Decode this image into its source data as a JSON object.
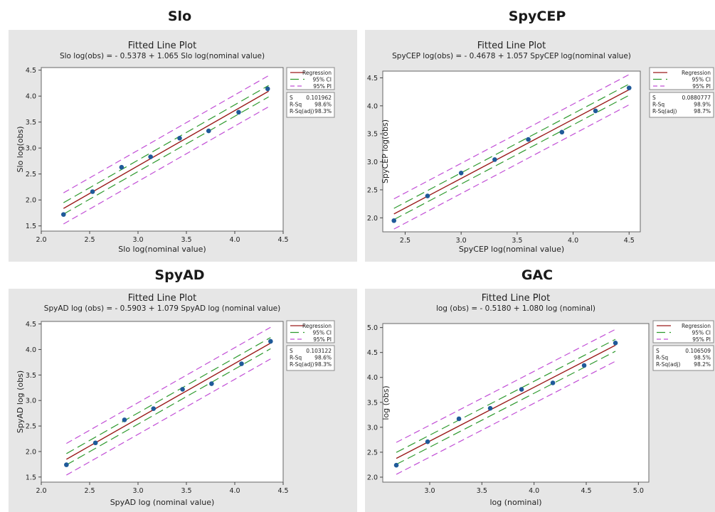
{
  "chart_data": [
    {
      "type": "scatter",
      "title": "Slo",
      "plot_title": "Fitted Line Plot",
      "equation": "Slo log(obs) = - 0.5378 + 1.065 Slo log(nominal value)",
      "xlabel": "Slo log(nominal value)",
      "ylabel": "Slo log(obs)",
      "xlim": [
        2.0,
        4.5
      ],
      "ylim": [
        1.4,
        4.55
      ],
      "xticks": [
        "2.0",
        "2.5",
        "3.0",
        "3.5",
        "4.0",
        "4.5"
      ],
      "yticks": [
        "1.5",
        "2.0",
        "2.5",
        "3.0",
        "3.5",
        "4.0",
        "4.5"
      ],
      "intercept": -0.5378,
      "slope": 1.065,
      "x_range": [
        2.23,
        4.35
      ],
      "ci_half": 0.11,
      "pi_half": 0.3,
      "points": [
        [
          2.23,
          1.72
        ],
        [
          2.53,
          2.16
        ],
        [
          2.83,
          2.63
        ],
        [
          3.13,
          2.83
        ],
        [
          3.43,
          3.19
        ],
        [
          3.73,
          3.33
        ],
        [
          4.04,
          3.69
        ],
        [
          4.34,
          4.14
        ]
      ],
      "legend": [
        "Regression",
        "95% CI",
        "95% PI"
      ],
      "stats": [
        [
          "S",
          "0.101962"
        ],
        [
          "R-Sq",
          "98.6%"
        ],
        [
          "R-Sq(adj)",
          "98.3%"
        ]
      ],
      "colors": {
        "regression": "#9b1b1b",
        "ci": "#2e9a2e",
        "pi": "#c24fd6",
        "point": "#1f5a99"
      }
    },
    {
      "type": "scatter",
      "title": "SpyCEP",
      "plot_title": "Fitted Line Plot",
      "equation": "SpyCEP log(obs) = - 0.4678 + 1.057 SpyCEP log(nominal value)",
      "xlabel": "SpyCEP log(nominal value)",
      "ylabel": "SpyCEP log(obs)",
      "xlim": [
        2.3,
        4.6
      ],
      "ylim": [
        1.75,
        4.62
      ],
      "xticks": [
        "2.5",
        "3.0",
        "3.5",
        "4.0",
        "4.5"
      ],
      "yticks": [
        "2.0",
        "2.5",
        "3.0",
        "3.5",
        "4.0",
        "4.5"
      ],
      "intercept": -0.4678,
      "slope": 1.057,
      "x_range": [
        2.4,
        4.5
      ],
      "ci_half": 0.1,
      "pi_half": 0.27,
      "points": [
        [
          2.4,
          1.95
        ],
        [
          2.7,
          2.39
        ],
        [
          3.0,
          2.8
        ],
        [
          3.3,
          3.04
        ],
        [
          3.6,
          3.4
        ],
        [
          3.9,
          3.53
        ],
        [
          4.2,
          3.91
        ],
        [
          4.5,
          4.32
        ]
      ],
      "legend": [
        "Regression",
        "95% CI",
        "95% PI"
      ],
      "stats": [
        [
          "S",
          "0.0880777"
        ],
        [
          "R-Sq",
          "98.9%"
        ],
        [
          "R-Sq(adj)",
          "98.7%"
        ]
      ],
      "colors": {
        "regression": "#9b1b1b",
        "ci": "#2e9a2e",
        "pi": "#c24fd6",
        "point": "#1f5a99"
      }
    },
    {
      "type": "scatter",
      "title": "SpyAD",
      "plot_title": "Fitted Line Plot",
      "equation": "SpyAD log (obs) = - 0.5903 + 1.079 SpyAD log (nominal value)",
      "xlabel": "SpyAD log (nominal value)",
      "ylabel": "SpyAD log (obs)",
      "xlim": [
        2.0,
        4.5
      ],
      "ylim": [
        1.4,
        4.55
      ],
      "xticks": [
        "2.0",
        "2.5",
        "3.0",
        "3.5",
        "4.0",
        "4.5"
      ],
      "yticks": [
        "1.5",
        "2.0",
        "2.5",
        "3.0",
        "3.5",
        "4.0",
        "4.5"
      ],
      "intercept": -0.5903,
      "slope": 1.079,
      "x_range": [
        2.26,
        4.37
      ],
      "ci_half": 0.11,
      "pi_half": 0.31,
      "points": [
        [
          2.26,
          1.74
        ],
        [
          2.56,
          2.17
        ],
        [
          2.86,
          2.62
        ],
        [
          3.16,
          2.84
        ],
        [
          3.46,
          3.22
        ],
        [
          3.76,
          3.33
        ],
        [
          4.07,
          3.72
        ],
        [
          4.37,
          4.16
        ]
      ],
      "legend": [
        "Regression",
        "95% CI",
        "95% PI"
      ],
      "stats": [
        [
          "S",
          "0.103122"
        ],
        [
          "R-Sq",
          "98.6%"
        ],
        [
          "R-Sq(adj)",
          "98.3%"
        ]
      ],
      "colors": {
        "regression": "#9b1b1b",
        "ci": "#2e9a2e",
        "pi": "#c24fd6",
        "point": "#1f5a99"
      }
    },
    {
      "type": "scatter",
      "title": "GAC",
      "plot_title": "Fitted Line Plot",
      "equation": "log (obs) = - 0.5180 + 1.080 log (nominal)",
      "xlabel": "log (nominal)",
      "ylabel": "log (obs)",
      "xlim": [
        2.55,
        5.1
      ],
      "ylim": [
        1.9,
        5.08
      ],
      "xticks": [
        "3.0",
        "3.5",
        "4.0",
        "4.5",
        "5.0"
      ],
      "yticks": [
        "2.0",
        "2.5",
        "3.0",
        "3.5",
        "4.0",
        "4.5",
        "5.0"
      ],
      "intercept": -0.518,
      "slope": 1.08,
      "x_range": [
        2.68,
        4.78
      ],
      "ci_half": 0.12,
      "pi_half": 0.32,
      "points": [
        [
          2.68,
          2.24
        ],
        [
          2.98,
          2.71
        ],
        [
          3.28,
          3.17
        ],
        [
          3.58,
          3.38
        ],
        [
          3.88,
          3.76
        ],
        [
          4.18,
          3.89
        ],
        [
          4.48,
          4.24
        ],
        [
          4.78,
          4.69
        ]
      ],
      "legend": [
        "Regression",
        "95% CI",
        "95% PI"
      ],
      "stats": [
        [
          "S",
          "0.106509"
        ],
        [
          "R-Sq",
          "98.5%"
        ],
        [
          "R-Sq(adj)",
          "98.2%"
        ]
      ],
      "colors": {
        "regression": "#9b1b1b",
        "ci": "#2e9a2e",
        "pi": "#c24fd6",
        "point": "#1f5a99"
      }
    }
  ]
}
